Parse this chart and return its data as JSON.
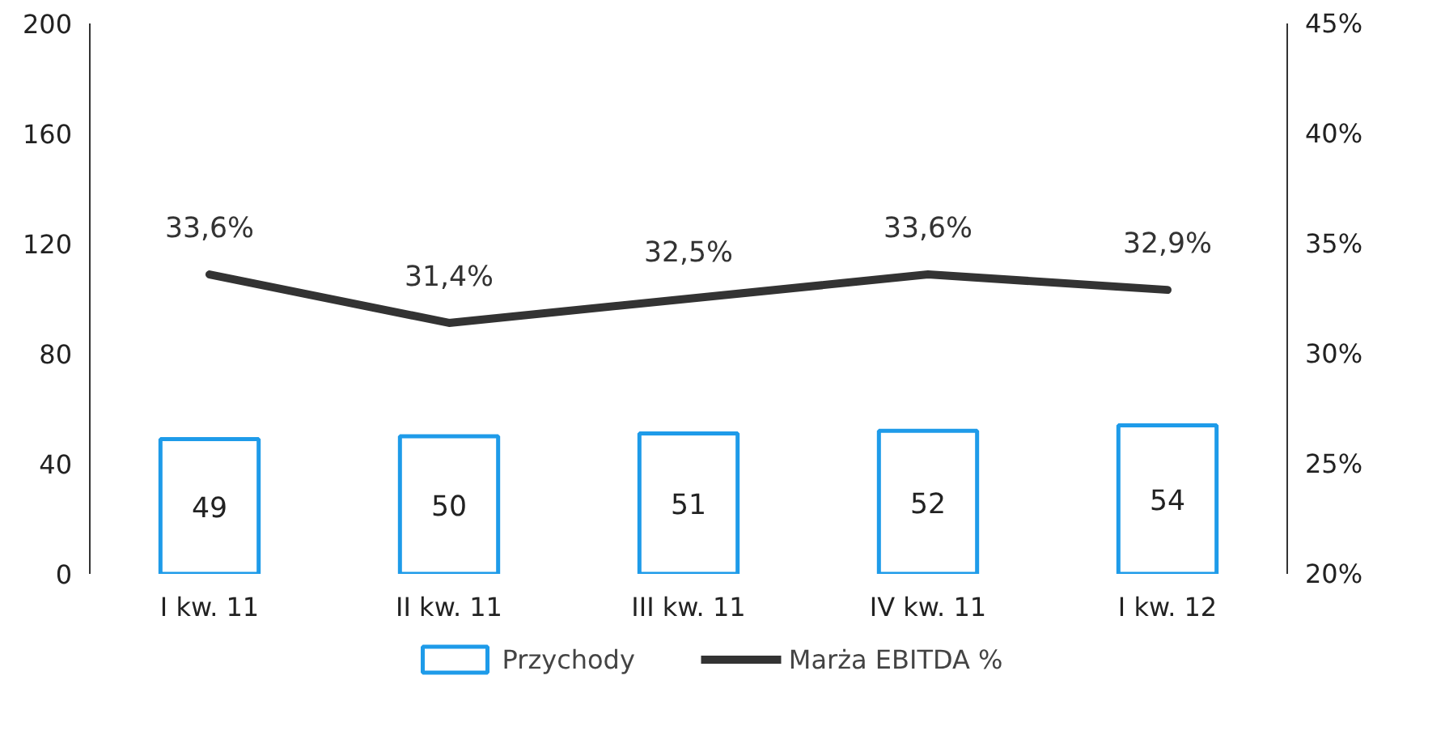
{
  "chart_data": {
    "type": "bar",
    "categories": [
      "I kw. 11",
      "II kw. 11",
      "III kw. 11",
      "IV kw. 11",
      "I kw. 12"
    ],
    "series": [
      {
        "name": "Przychody",
        "color": "#1e9be9",
        "values": [
          49,
          50,
          51,
          52,
          54
        ],
        "value_labels": [
          "49",
          "50",
          "51",
          "52",
          "54"
        ]
      },
      {
        "name": "Marża EBITDA %",
        "type": "line",
        "axis": "y2",
        "color": "#333333",
        "values": [
          33.6,
          31.4,
          32.5,
          33.6,
          32.9
        ],
        "value_labels": [
          "33,6%",
          "31,4%",
          "32,5%",
          "33,6%",
          "32,9%"
        ]
      }
    ],
    "ylim": [
      0,
      200
    ],
    "yticks": [
      0,
      40,
      80,
      120,
      160,
      200
    ],
    "y2lim": [
      20,
      45
    ],
    "y2ticks": [
      {
        "value": 20,
        "label": "20%"
      },
      {
        "value": 25,
        "label": "25%"
      },
      {
        "value": 30,
        "label": "30%"
      },
      {
        "value": 35,
        "label": "35%"
      },
      {
        "value": 40,
        "label": "40%"
      },
      {
        "value": 45,
        "label": "45%"
      }
    ],
    "grid": false,
    "legend": "bottom",
    "marker": "none",
    "line_style": "solid"
  }
}
